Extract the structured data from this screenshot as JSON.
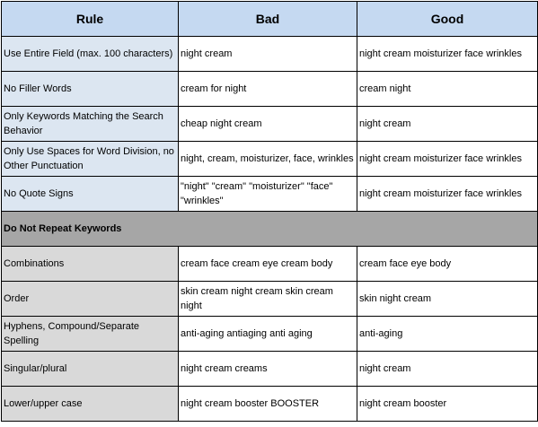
{
  "table": {
    "headers": [
      "Rule",
      "Bad",
      "Good"
    ],
    "rows_a": [
      {
        "rule": "Use Entire Field (max. 100 characters)",
        "bad": "night cream",
        "good": "night cream moisturizer face wrinkles"
      },
      {
        "rule": "No Filler Words",
        "bad": "cream for night",
        "good": "cream night"
      },
      {
        "rule": "Only Keywords Matching the Search Behavior",
        "bad": "cheap night cream",
        "good": "night cream"
      },
      {
        "rule": "Only Use Spaces for Word Division, no Other Punctuation",
        "bad": "night, cream, moisturizer, face, wrinkles",
        "good": "night cream moisturizer face wrinkles"
      },
      {
        "rule": "No Quote Signs",
        "bad": "\"night\" \"cream\" \"moisturizer\" \"face\" \"wrinkles\"",
        "good": "night cream moisturizer face wrinkles"
      }
    ],
    "section_title": "Do Not Repeat Keywords",
    "rows_b": [
      {
        "rule": "Combinations",
        "bad": "cream face cream eye cream body",
        "good": "cream face eye body"
      },
      {
        "rule": "Order",
        "bad": "skin cream night cream skin cream night",
        "good": "skin night cream"
      },
      {
        "rule": "Hyphens, Compound/Separate Spelling",
        "bad": "anti-aging antiaging anti aging",
        "good": "anti-aging"
      },
      {
        "rule": "Singular/plural",
        "bad": "night cream creams",
        "good": "night cream"
      },
      {
        "rule": "Lower/upper case",
        "bad": "night cream booster BOOSTER",
        "good": "night cream booster"
      }
    ]
  },
  "colors": {
    "header_bg": "#c5d9f1",
    "rule_bg_a": "#dce6f1",
    "rule_bg_b": "#d9d9d9",
    "section_bg": "#a6a6a6"
  }
}
